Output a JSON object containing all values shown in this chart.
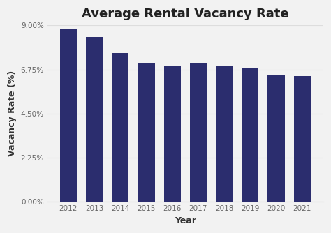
{
  "title": "Average Rental Vacancy Rate",
  "xlabel": "Year",
  "ylabel": "Vacancy Rate (%)",
  "categories": [
    "2012",
    "2013",
    "2014",
    "2015",
    "2016",
    "2017",
    "2018",
    "2019",
    "2020",
    "2021"
  ],
  "values": [
    8.8,
    8.4,
    7.6,
    7.1,
    6.9,
    7.1,
    6.9,
    6.8,
    6.5,
    6.4
  ],
  "bar_color": "#2b2d6e",
  "background_color": "#f2f2f2",
  "plot_bg_color": "#f2f2f2",
  "ylim": [
    0,
    9.0
  ],
  "yticks": [
    0,
    2.25,
    4.5,
    6.75,
    9.0
  ],
  "ytick_labels": [
    "0.00%",
    "2.25%",
    "4.50%",
    "6.75%",
    "9.00%"
  ],
  "title_fontsize": 13,
  "axis_label_fontsize": 9,
  "tick_fontsize": 7.5,
  "title_fontweight": "bold",
  "axis_label_fontweight": "bold"
}
